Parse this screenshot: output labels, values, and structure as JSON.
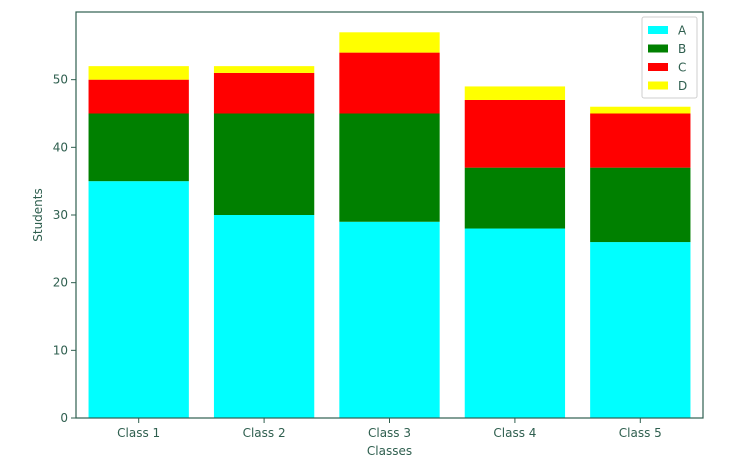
{
  "chart_data": {
    "type": "bar",
    "stacked": true,
    "categories": [
      "Class 1",
      "Class 2",
      "Class 3",
      "Class 4",
      "Class 5"
    ],
    "series": [
      {
        "name": "A",
        "color": "#00ffff",
        "values": [
          35,
          30,
          29,
          28,
          26
        ]
      },
      {
        "name": "B",
        "color": "#008000",
        "values": [
          10,
          15,
          16,
          9,
          11
        ]
      },
      {
        "name": "C",
        "color": "#ff0000",
        "values": [
          5,
          6,
          9,
          10,
          8
        ]
      },
      {
        "name": "D",
        "color": "#ffff00",
        "values": [
          2,
          1,
          3,
          2,
          1
        ]
      }
    ],
    "title": "",
    "xlabel": "Classes",
    "ylabel": "Students",
    "ylim": [
      0,
      60
    ],
    "yticks": [
      0,
      10,
      20,
      30,
      40,
      50
    ],
    "grid": false,
    "legend_position": "top-right"
  }
}
